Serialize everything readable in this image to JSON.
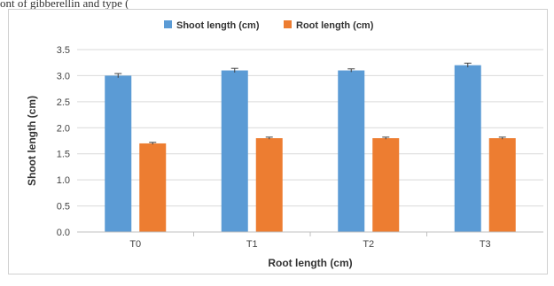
{
  "caption_fragment": "ont of   gibberellin and              type                 (",
  "chart_data": {
    "type": "bar",
    "categories": [
      "T0",
      "T1",
      "T2",
      "T3"
    ],
    "series": [
      {
        "name": "Shoot length (cm)",
        "values": [
          3.0,
          3.1,
          3.1,
          3.2
        ],
        "errors": [
          0.04,
          0.04,
          0.03,
          0.04
        ],
        "color": "#5b9bd5"
      },
      {
        "name": "Root length (cm)",
        "values": [
          1.7,
          1.8,
          1.8,
          1.8
        ],
        "errors": [
          0.02,
          0.02,
          0.02,
          0.02
        ],
        "color": "#ed7d31"
      }
    ],
    "xlabel": "Root length (cm)",
    "ylabel": "Shoot length (cm)",
    "ylim": [
      0,
      3.5
    ],
    "yticks": [
      "0.0",
      "0.5",
      "1.0",
      "1.5",
      "2.0",
      "2.5",
      "3.0",
      "3.5"
    ],
    "grid": true,
    "legend_position": "top"
  }
}
